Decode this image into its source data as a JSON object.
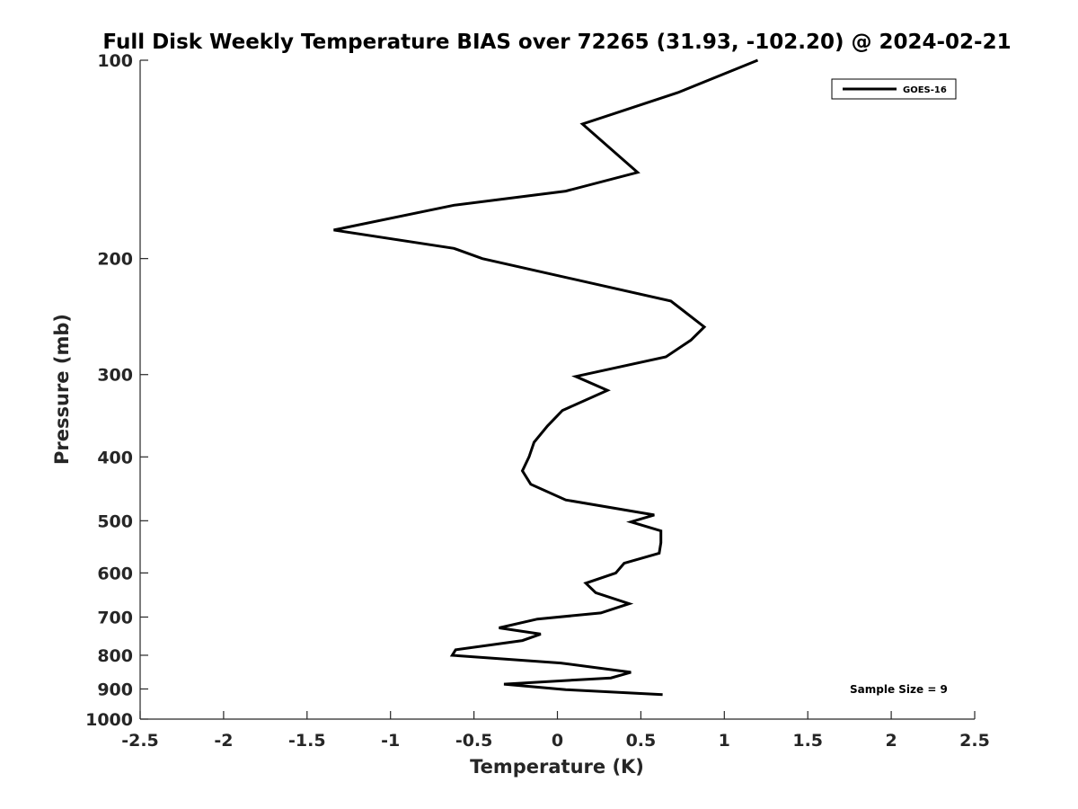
{
  "chart_data": {
    "type": "line",
    "title": "Full Disk Weekly Temperature BIAS over 72265 (31.93, -102.20) @ 2024-02-21",
    "xlabel": "Temperature (K)",
    "ylabel": "Pressure (mb)",
    "xlim": [
      -2.5,
      2.5
    ],
    "ylim": [
      1000,
      100
    ],
    "y_scale": "log",
    "y_reversed": true,
    "x_ticks": [
      "-2.5",
      "-2",
      "-1.5",
      "-1",
      "-0.5",
      "0",
      "0.5",
      "1",
      "1.5",
      "2",
      "2.5"
    ],
    "x_tick_values": [
      -2.5,
      -2,
      -1.5,
      -1,
      -0.5,
      0,
      0.5,
      1,
      1.5,
      2,
      2.5
    ],
    "y_ticks": [
      "100",
      "200",
      "300",
      "400",
      "500",
      "600",
      "700",
      "800",
      "900",
      "1000"
    ],
    "y_tick_values": [
      100,
      200,
      300,
      400,
      500,
      600,
      700,
      800,
      900,
      1000
    ],
    "grid": false,
    "legend_position": "top-right",
    "line_color": "#000000",
    "series": [
      {
        "name": "GOES-16",
        "points": [
          [
            1.2,
            100
          ],
          [
            0.72,
            112
          ],
          [
            0.15,
            125
          ],
          [
            0.48,
            148
          ],
          [
            0.05,
            158
          ],
          [
            -0.62,
            166
          ],
          [
            -1.34,
            181
          ],
          [
            -0.62,
            193
          ],
          [
            -0.45,
            200
          ],
          [
            0.68,
            232
          ],
          [
            0.88,
            254
          ],
          [
            0.8,
            266
          ],
          [
            0.65,
            282
          ],
          [
            0.11,
            302
          ],
          [
            0.3,
            317
          ],
          [
            0.03,
            340
          ],
          [
            -0.06,
            359
          ],
          [
            -0.14,
            380
          ],
          [
            -0.17,
            400
          ],
          [
            -0.21,
            420
          ],
          [
            -0.16,
            440
          ],
          [
            0.05,
            465
          ],
          [
            0.58,
            490
          ],
          [
            0.44,
            502
          ],
          [
            0.62,
            518
          ],
          [
            0.62,
            540
          ],
          [
            0.61,
            560
          ],
          [
            0.4,
            580
          ],
          [
            0.35,
            600
          ],
          [
            0.17,
            622
          ],
          [
            0.23,
            643
          ],
          [
            0.43,
            668
          ],
          [
            0.26,
            690
          ],
          [
            -0.12,
            705
          ],
          [
            -0.35,
            727
          ],
          [
            -0.1,
            743
          ],
          [
            -0.21,
            760
          ],
          [
            -0.61,
            785
          ],
          [
            -0.63,
            800
          ],
          [
            0.02,
            822
          ],
          [
            0.44,
            849
          ],
          [
            0.32,
            866
          ],
          [
            -0.32,
            885
          ],
          [
            0.05,
            902
          ],
          [
            0.63,
            918
          ]
        ]
      }
    ],
    "annotations": [
      "Sample Size = 9"
    ]
  }
}
